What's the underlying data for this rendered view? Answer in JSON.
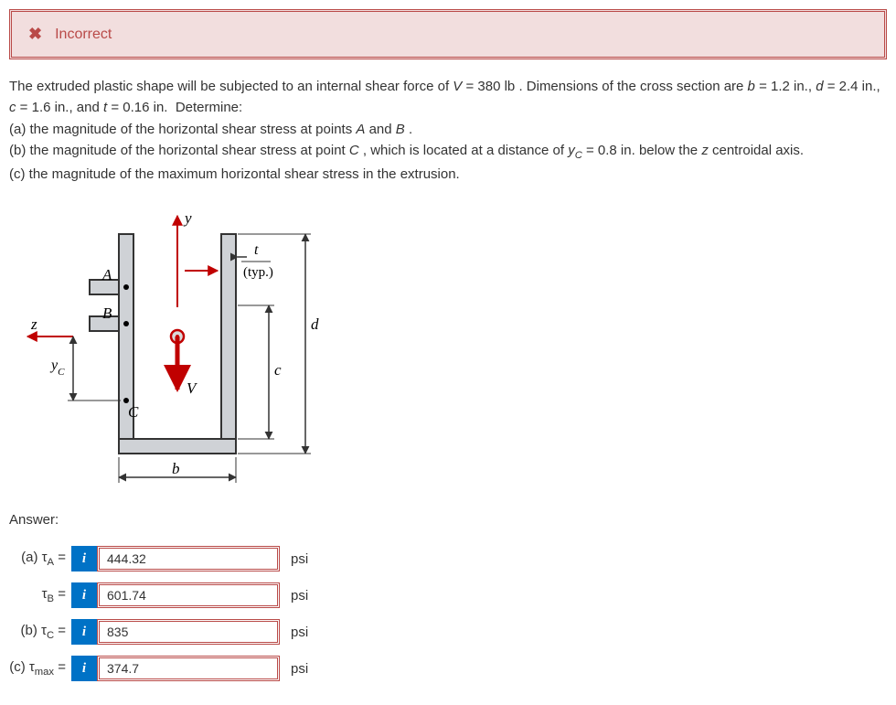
{
  "alert": {
    "icon": "✖",
    "text": "Incorrect"
  },
  "problem": {
    "intro": "The extruded plastic shape will be subjected to an internal shear force of ",
    "V_label": "V",
    "V_val": "= 380 lb",
    "dims_intro": ". Dimensions of the cross section are ",
    "b_label": "b",
    "b_val": "= 1.2 in.,",
    "d_label": "d",
    "d_val": "= 2.4 in.,",
    "c_label": "c",
    "c_val": "= 1.6 in., and",
    "t_label": "t",
    "t_val": "= 0.16 in.",
    "determine": "Determine:",
    "part_a": "(a) the magnitude of the horizontal shear stress at points ",
    "A": "A",
    "and": " and ",
    "B": "B",
    "period": ".",
    "part_b_1": "(b) the magnitude of the horizontal shear stress at point ",
    "C": "C",
    "part_b_2": ", which is located at a distance of ",
    "yc_label": "y",
    "yc_sub": "C",
    "yc_val": " = 0.8 in. below the ",
    "z_label": "z",
    "part_b_3": " centroidal axis.",
    "part_c": "(c) the magnitude of the maximum horizontal shear stress in the extrusion."
  },
  "figure": {
    "labels": {
      "y": "y",
      "t": "t",
      "typ": "(typ.)",
      "A": "A",
      "B": "B",
      "d": "d",
      "z": "z",
      "yc": "yC",
      "c": "c",
      "C": "C",
      "V": "V",
      "b": "b"
    },
    "colors": {
      "shape_fill": "#cfd2d6",
      "shape_stroke": "#333333",
      "axis": "#c00000",
      "arrow": "#c00000",
      "label": "#000000",
      "dim": "#333333"
    }
  },
  "answer": {
    "heading": "Answer:",
    "rows": [
      {
        "label_pre": "(a) τ",
        "sub": "A",
        "label_post": " =",
        "value": "444.32",
        "unit": "psi"
      },
      {
        "label_pre": "τ",
        "sub": "B",
        "label_post": " =",
        "value": "601.74",
        "unit": "psi"
      },
      {
        "label_pre": "(b) τ",
        "sub": "C",
        "label_post": " =",
        "value": "835",
        "unit": "psi"
      },
      {
        "label_pre": "(c) τ",
        "sub": "max",
        "label_post": " =",
        "value": "374.7",
        "unit": "psi"
      }
    ],
    "info_icon": "i"
  }
}
